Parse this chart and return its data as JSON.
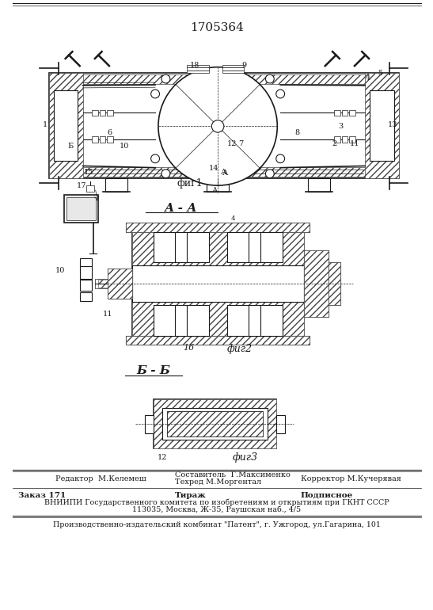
{
  "title": "1705364",
  "fig1_label": "фиг1",
  "fig2_label": "фиг2",
  "fig3_label": "фиг3",
  "section_aa": "А - А",
  "section_bb": "Б - Б",
  "footer_editor": "Редактор  М.Келемеш",
  "footer_composer": "Составитель  Г.Максименко",
  "footer_tech": "Техред М.Моргентал",
  "footer_corrector": "Корректор М.Кучерявая",
  "footer_order": "Заказ 171",
  "footer_print": "Тираж",
  "footer_sub": "Подписное",
  "footer_vniipи": "ВНИИПИ Государственного комитета по изобретениям и открытиям при ГКНТ СССР",
  "footer_address": "113035, Москва, Ж-35, Раушская наб., 4/5",
  "footer_plant": "Производственно-издательский комбинат \"Патент\", г. Ужгород, ул.Гагарина, 101",
  "bg_color": "#ffffff",
  "line_color": "#1a1a1a",
  "hatch_color": "#444444"
}
